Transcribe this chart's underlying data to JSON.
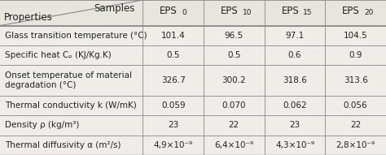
{
  "headers": [
    "EPS",
    "EPS",
    "EPS",
    "EPS"
  ],
  "header_subs": [
    "0",
    "10",
    "15",
    "20"
  ],
  "col_label": "Samples",
  "row_label": "Properties",
  "rows": [
    {
      "property": "Glass transition temperature (°C)",
      "values": [
        "101.4",
        "96.5",
        "97.1",
        "104.5"
      ],
      "two_line": false
    },
    {
      "property": "Specific heat Cₚ (KJ/Kg.K)",
      "values": [
        "0.5",
        "0.5",
        "0.6",
        "0.9"
      ],
      "two_line": false
    },
    {
      "property": "Onset temperatue of material\ndegradation (°C)",
      "values": [
        "326.7",
        "300.2",
        "318.6",
        "313.6"
      ],
      "two_line": true
    },
    {
      "property": "Thermal conductivity k (W/mK)",
      "values": [
        "0.059",
        "0.070",
        "0.062",
        "0.056"
      ],
      "two_line": false
    },
    {
      "property": "Density ρ (kg/m³)",
      "values": [
        "23",
        "22",
        "23",
        "22"
      ],
      "two_line": false
    },
    {
      "property": "Thermal diffusivity α (m²/s)",
      "values": [
        "4,9×10⁻⁹",
        "6,4×10⁻⁹",
        "4,3×10⁻⁹",
        "2,8×10⁻⁹"
      ],
      "two_line": false
    }
  ],
  "bg_color": "#f0ede8",
  "header_bg": "#e8e4de",
  "line_color": "#888888",
  "text_color": "#222222",
  "font_size": 7.5,
  "header_font_size": 8.5
}
